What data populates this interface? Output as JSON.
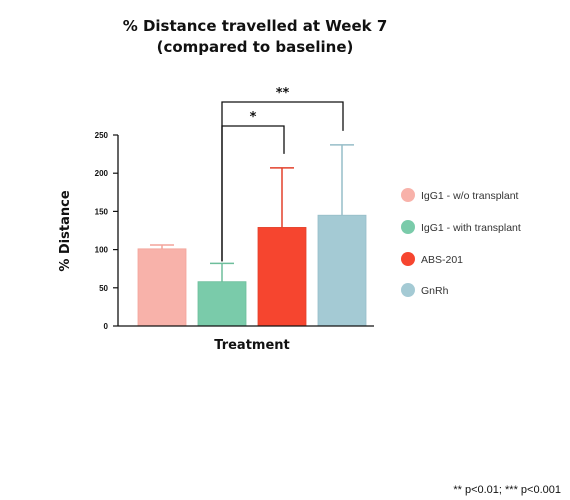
{
  "chart_data": {
    "type": "bar",
    "title_lines": [
      "% Distance travelled at Week 7",
      "(compared to baseline)"
    ],
    "xlabel": "Treatment",
    "ylabel": "% Distance",
    "ylim": [
      0,
      250
    ],
    "yticks": [
      0,
      50,
      100,
      150,
      200,
      250
    ],
    "grid": false,
    "legend_position": "right",
    "categories": [
      "IgG1 - w/o transplant",
      "IgG1 - with transplant",
      "ABS-201",
      "GnRh"
    ],
    "values": [
      101,
      58,
      129,
      145
    ],
    "error_upper": [
      106,
      82,
      207,
      237
    ],
    "colors": [
      "#F8B2AA",
      "#7ACBAA",
      "#F6452F",
      "#A4CAD4"
    ],
    "error_colors": [
      "#F3A49A",
      "#6DBE9B",
      "#E2402B",
      "#96BDC8"
    ],
    "significance": [
      {
        "from": 1,
        "to": 2,
        "label": "*"
      },
      {
        "from": 1,
        "to": 3,
        "label": "**"
      }
    ],
    "footnote": "** p<0.01;  *** p<0.001"
  }
}
